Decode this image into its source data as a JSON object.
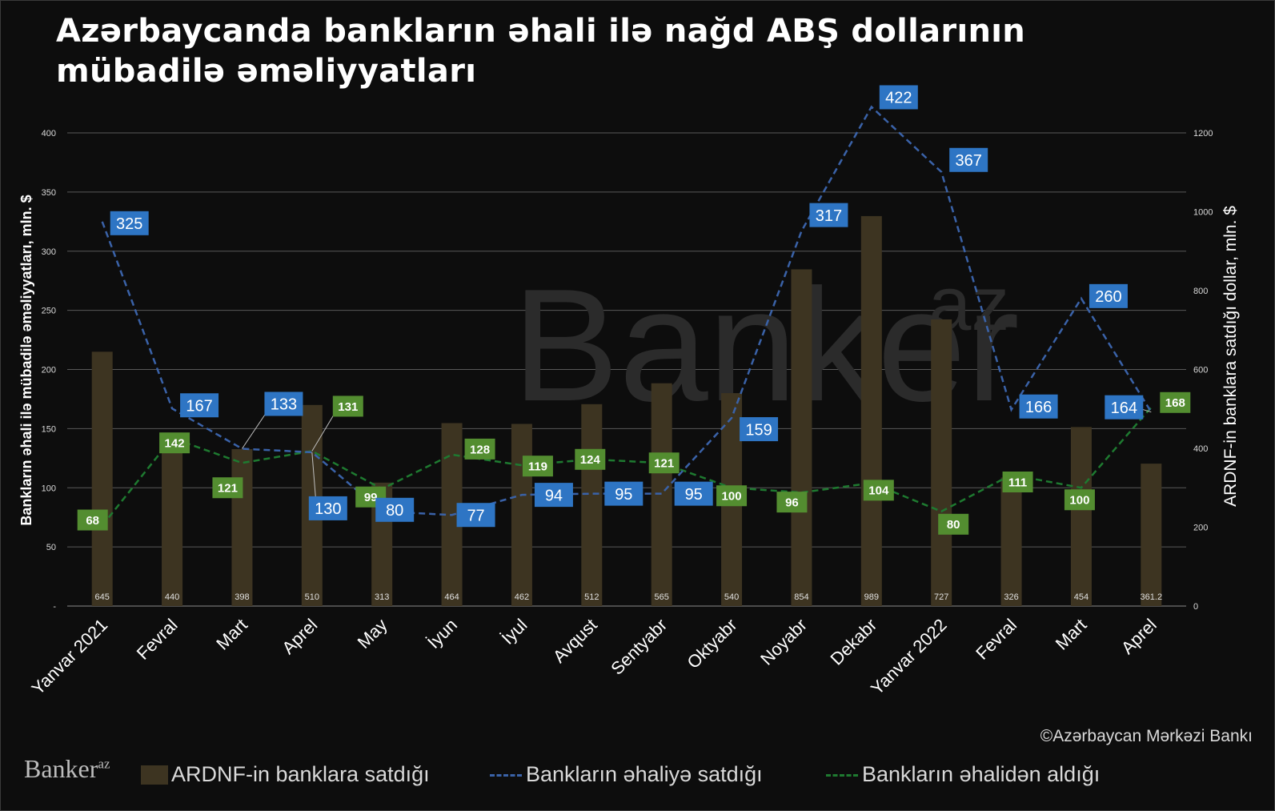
{
  "title_line1": "Azərbaycanda bankların əhali ilə nağd ABŞ dollarının",
  "title_line2": "mübadilə əməliyyatları",
  "source": "©Azərbaycan Mərkəzi Bankı",
  "brand": "Banker",
  "brand_sup": "az",
  "watermark": "Banker",
  "watermark_sup": "az",
  "colors": {
    "bar": "#3d3421",
    "blue_line": "#3a62a8",
    "blue_label": "#2e75c4",
    "green_line": "#1e7a30",
    "green_label": "#538d30",
    "grid": "#595959"
  },
  "chart_data": {
    "type": "bar",
    "categories": [
      "Yanvar 2021",
      "Fevral",
      "Mart",
      "Aprel",
      "May",
      "İyun",
      "İyul",
      "Avqust",
      "Sentyabr",
      "Oktyabr",
      "Noyabr",
      "Dekabr",
      "Yanvar 2022",
      "Fevral",
      "Mart",
      "Aprel"
    ],
    "ylabel": "Bankların əhali ilə mübadilə əməliyyatları, mln. $",
    "y2label": "ARDNF-in banklara satdığı dollar, mln. $",
    "ylim": [
      0,
      400
    ],
    "y2lim": [
      0,
      1200
    ],
    "yticks": [
      "-",
      "50",
      "100",
      "150",
      "200",
      "250",
      "300",
      "350",
      "400"
    ],
    "y2ticks": [
      "0",
      "200",
      "400",
      "600",
      "800",
      "1000",
      "1200"
    ],
    "grid": true,
    "legend_position": "bottom",
    "series": [
      {
        "name": "ARDNF-in  banklara satdığı",
        "type": "bar",
        "axis": "right",
        "values": [
          645,
          440,
          398,
          510,
          313,
          464,
          462,
          512,
          565,
          540,
          854,
          989,
          727,
          326,
          454,
          361.2
        ],
        "labels": [
          "645",
          "440",
          "398",
          "510",
          "313",
          "464",
          "462",
          "512",
          "565",
          "540",
          "854",
          "989",
          "727",
          "326",
          "454",
          "361.2"
        ]
      },
      {
        "name": "Bankların əhaliyə satdığı",
        "type": "line",
        "style": "dashed",
        "axis": "left",
        "values": [
          325,
          167,
          133,
          130,
          80,
          77,
          94,
          95,
          95,
          159,
          317,
          422,
          367,
          166,
          260,
          164
        ]
      },
      {
        "name": "Bankların əhalidən aldığı",
        "type": "line",
        "style": "dashed",
        "axis": "left",
        "values": [
          68,
          142,
          121,
          131,
          99,
          128,
          119,
          124,
          121,
          100,
          96,
          104,
          80,
          111,
          100,
          168
        ]
      }
    ]
  }
}
